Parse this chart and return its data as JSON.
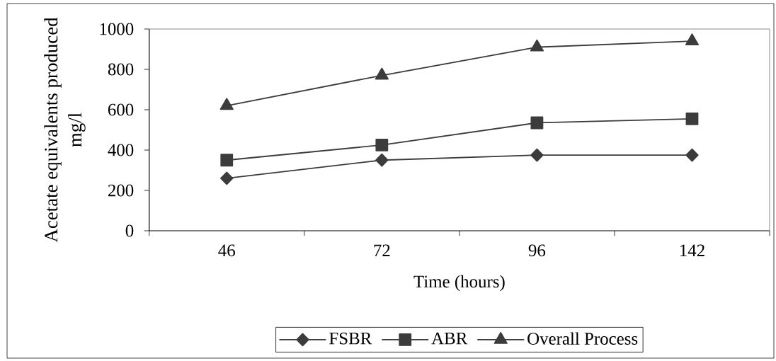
{
  "chart_data": {
    "type": "line",
    "xlabel": "Time (hours)",
    "ylabel": "Acetate equivalents produced mg/l",
    "categories": [
      "46",
      "72",
      "96",
      "142"
    ],
    "series": [
      {
        "name": "FSBR",
        "color": "#3c3c3c",
        "marker": "diamond",
        "values": [
          260,
          350,
          375,
          375
        ]
      },
      {
        "name": "ABR",
        "color": "#3c3c3c",
        "marker": "square",
        "values": [
          350,
          425,
          535,
          555
        ]
      },
      {
        "name": "Overall Process",
        "color": "#3c3c3c",
        "marker": "triangle",
        "values": [
          620,
          770,
          910,
          940
        ]
      }
    ],
    "ylim": [
      0,
      1000
    ],
    "yticks": [
      0,
      200,
      400,
      600,
      800,
      1000
    ],
    "legend": "bottom",
    "line_style": "solid"
  }
}
